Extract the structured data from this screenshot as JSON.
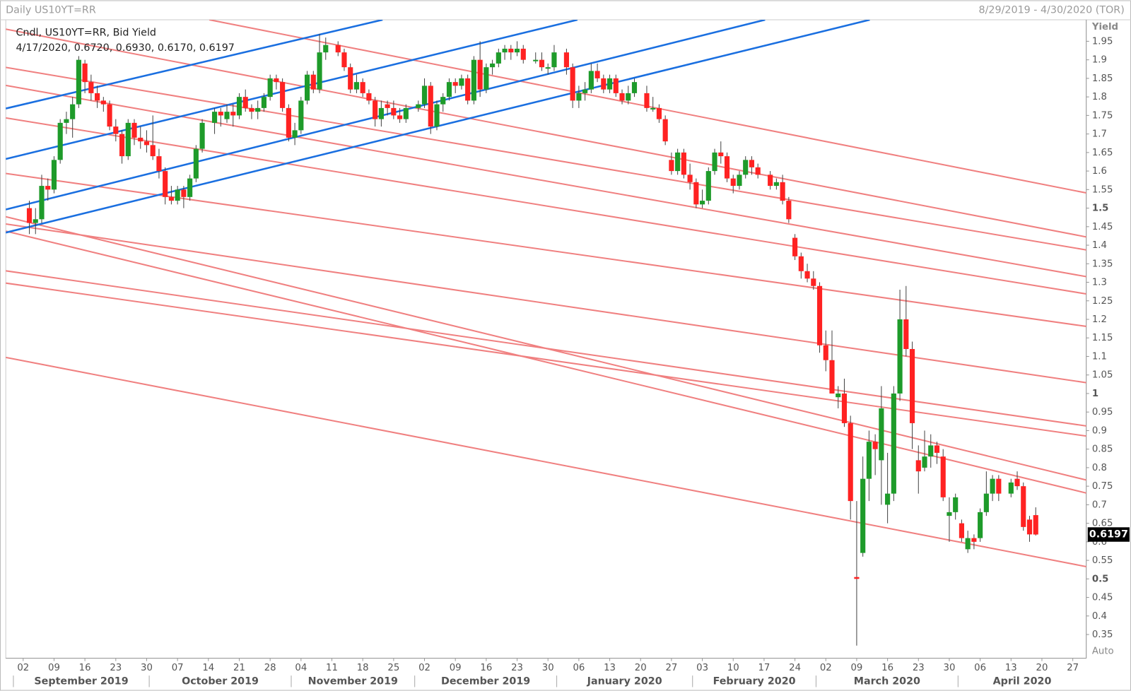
{
  "chart_data": {
    "type": "candlestick",
    "title": "Daily US10YT=RR",
    "date_range": "8/29/2019 - 4/30/2020 (TOR)",
    "legend_title": "Cndl, US10YT=RR, Bid Yield",
    "legend_detail": "4/17/2020, 0.6720, 0.6930, 0.6170, 0.6197",
    "y_label": "Yield",
    "scale_mode": "Auto",
    "up_color": "#1e9b2a",
    "down_color": "#ff2222",
    "x": [
      "2019-09-03",
      "2019-09-04",
      "2019-09-05",
      "2019-09-06",
      "2019-09-09",
      "2019-09-10",
      "2019-09-11",
      "2019-09-12",
      "2019-09-13",
      "2019-09-16",
      "2019-09-17",
      "2019-09-18",
      "2019-09-19",
      "2019-09-20",
      "2019-09-23",
      "2019-09-24",
      "2019-09-25",
      "2019-09-26",
      "2019-09-27",
      "2019-09-30",
      "2019-10-01",
      "2019-10-02",
      "2019-10-03",
      "2019-10-04",
      "2019-10-07",
      "2019-10-08",
      "2019-10-09",
      "2019-10-10",
      "2019-10-11",
      "2019-10-15",
      "2019-10-16",
      "2019-10-17",
      "2019-10-18",
      "2019-10-21",
      "2019-10-22",
      "2019-10-23",
      "2019-10-24",
      "2019-10-25",
      "2019-10-28",
      "2019-10-29",
      "2019-10-30",
      "2019-10-31",
      "2019-11-01",
      "2019-11-04",
      "2019-11-05",
      "2019-11-06",
      "2019-11-07",
      "2019-11-08",
      "2019-11-12",
      "2019-11-13",
      "2019-11-14",
      "2019-11-15",
      "2019-11-18",
      "2019-11-19",
      "2019-11-20",
      "2019-11-21",
      "2019-11-22",
      "2019-11-25",
      "2019-11-26",
      "2019-11-27",
      "2019-11-29",
      "2019-12-02",
      "2019-12-03",
      "2019-12-04",
      "2019-12-05",
      "2019-12-06",
      "2019-12-09",
      "2019-12-10",
      "2019-12-11",
      "2019-12-12",
      "2019-12-13",
      "2019-12-16",
      "2019-12-17",
      "2019-12-18",
      "2019-12-19",
      "2019-12-20",
      "2019-12-23",
      "2019-12-24",
      "2019-12-26",
      "2019-12-27",
      "2019-12-30",
      "2019-12-31",
      "2020-01-02",
      "2020-01-03",
      "2020-01-06",
      "2020-01-07",
      "2020-01-08",
      "2020-01-09",
      "2020-01-10",
      "2020-01-13",
      "2020-01-14",
      "2020-01-15",
      "2020-01-16",
      "2020-01-17",
      "2020-01-21",
      "2020-01-22",
      "2020-01-23",
      "2020-01-24",
      "2020-01-27",
      "2020-01-28",
      "2020-01-29",
      "2020-01-30",
      "2020-01-31",
      "2020-02-03",
      "2020-02-04",
      "2020-02-05",
      "2020-02-06",
      "2020-02-07",
      "2020-02-10",
      "2020-02-11",
      "2020-02-12",
      "2020-02-13",
      "2020-02-14",
      "2020-02-18",
      "2020-02-19",
      "2020-02-20",
      "2020-02-21",
      "2020-02-24",
      "2020-02-25",
      "2020-02-26",
      "2020-02-27",
      "2020-02-28",
      "2020-03-02",
      "2020-03-03",
      "2020-03-04",
      "2020-03-05",
      "2020-03-06",
      "2020-03-09",
      "2020-03-10",
      "2020-03-11",
      "2020-03-12",
      "2020-03-13",
      "2020-03-16",
      "2020-03-17",
      "2020-03-18",
      "2020-03-19",
      "2020-03-20",
      "2020-03-23",
      "2020-03-24",
      "2020-03-25",
      "2020-03-26",
      "2020-03-27",
      "2020-03-30",
      "2020-03-31",
      "2020-04-01",
      "2020-04-02",
      "2020-04-03",
      "2020-04-06",
      "2020-04-07",
      "2020-04-08",
      "2020-04-09",
      "2020-04-13",
      "2020-04-14",
      "2020-04-15",
      "2020-04-16",
      "2020-04-17"
    ],
    "open": [
      1.5,
      1.46,
      1.47,
      1.56,
      1.55,
      1.63,
      1.73,
      1.74,
      1.78,
      1.89,
      1.84,
      1.81,
      1.79,
      1.78,
      1.72,
      1.7,
      1.64,
      1.73,
      1.69,
      1.68,
      1.67,
      1.64,
      1.6,
      1.53,
      1.52,
      1.55,
      1.53,
      1.58,
      1.66,
      1.73,
      1.76,
      1.74,
      1.76,
      1.75,
      1.8,
      1.77,
      1.76,
      1.77,
      1.8,
      1.85,
      1.84,
      1.77,
      1.69,
      1.71,
      1.79,
      1.86,
      1.82,
      1.92,
      1.94,
      1.92,
      1.88,
      1.82,
      1.84,
      1.81,
      1.79,
      1.74,
      1.78,
      1.77,
      1.75,
      1.74,
      1.77,
      1.78,
      1.83,
      1.72,
      1.78,
      1.8,
      1.84,
      1.83,
      1.85,
      1.79,
      1.9,
      1.82,
      1.88,
      1.89,
      1.92,
      1.93,
      1.92,
      1.93,
      1.9,
      1.9,
      1.88,
      1.88,
      1.92,
      1.88,
      1.79,
      1.81,
      1.82,
      1.87,
      1.85,
      1.82,
      1.85,
      1.81,
      1.79,
      1.81,
      1.81,
      1.77,
      1.77,
      1.74,
      1.63,
      1.6,
      1.65,
      1.59,
      1.57,
      1.51,
      1.52,
      1.6,
      1.65,
      1.64,
      1.58,
      1.56,
      1.59,
      1.63,
      1.61,
      1.59,
      1.56,
      1.57,
      1.52,
      1.42,
      1.37,
      1.33,
      1.31,
      1.29,
      1.13,
      1.09,
      0.99,
      1.0,
      0.92,
      0.505,
      0.57,
      0.77,
      0.87,
      0.82,
      0.7,
      0.73,
      1.0,
      1.2,
      1.12,
      0.82,
      0.8,
      0.83,
      0.86,
      0.83,
      0.67,
      0.68,
      0.65,
      0.58,
      0.61,
      0.61,
      0.68,
      0.73,
      0.77,
      0.73,
      0.77,
      0.75,
      0.66,
      0.672
    ],
    "high": [
      1.52,
      1.5,
      1.59,
      1.58,
      1.64,
      1.74,
      1.76,
      1.8,
      1.91,
      1.9,
      1.86,
      1.83,
      1.8,
      1.79,
      1.74,
      1.71,
      1.74,
      1.74,
      1.72,
      1.71,
      1.75,
      1.66,
      1.61,
      1.56,
      1.56,
      1.56,
      1.59,
      1.67,
      1.74,
      1.77,
      1.77,
      1.78,
      1.78,
      1.81,
      1.82,
      1.78,
      1.79,
      1.81,
      1.86,
      1.86,
      1.85,
      1.78,
      1.73,
      1.8,
      1.87,
      1.87,
      1.97,
      1.96,
      1.95,
      1.93,
      1.89,
      1.86,
      1.85,
      1.82,
      1.8,
      1.79,
      1.79,
      1.79,
      1.77,
      1.78,
      1.79,
      1.85,
      1.84,
      1.79,
      1.81,
      1.85,
      1.85,
      1.86,
      1.86,
      1.91,
      1.95,
      1.89,
      1.9,
      1.93,
      1.94,
      1.94,
      1.95,
      1.94,
      1.92,
      1.92,
      1.89,
      1.94,
      1.93,
      1.89,
      1.83,
      1.84,
      1.89,
      1.89,
      1.86,
      1.86,
      1.86,
      1.82,
      1.83,
      1.85,
      1.83,
      1.8,
      1.78,
      1.75,
      1.65,
      1.66,
      1.66,
      1.62,
      1.58,
      1.55,
      1.61,
      1.66,
      1.68,
      1.65,
      1.59,
      1.6,
      1.64,
      1.64,
      1.62,
      1.6,
      1.58,
      1.59,
      1.53,
      1.43,
      1.38,
      1.35,
      1.33,
      1.3,
      1.17,
      1.17,
      1.02,
      1.04,
      0.94,
      0.71,
      0.83,
      0.9,
      0.89,
      1.02,
      0.84,
      1.02,
      1.28,
      1.29,
      1.14,
      0.86,
      0.9,
      0.89,
      0.87,
      0.85,
      0.72,
      0.73,
      0.66,
      0.63,
      0.62,
      0.69,
      0.79,
      0.78,
      0.78,
      0.77,
      0.79,
      0.76,
      0.67,
      0.693
    ],
    "low": [
      1.43,
      1.43,
      1.46,
      1.52,
      1.54,
      1.62,
      1.7,
      1.69,
      1.77,
      1.81,
      1.79,
      1.77,
      1.76,
      1.71,
      1.68,
      1.62,
      1.63,
      1.67,
      1.66,
      1.65,
      1.63,
      1.58,
      1.51,
      1.51,
      1.51,
      1.5,
      1.52,
      1.57,
      1.65,
      1.7,
      1.72,
      1.73,
      1.72,
      1.74,
      1.76,
      1.74,
      1.74,
      1.76,
      1.79,
      1.82,
      1.76,
      1.68,
      1.67,
      1.7,
      1.78,
      1.81,
      1.81,
      1.9,
      1.91,
      1.87,
      1.81,
      1.81,
      1.8,
      1.78,
      1.72,
      1.72,
      1.75,
      1.74,
      1.73,
      1.73,
      1.76,
      1.77,
      1.7,
      1.71,
      1.76,
      1.79,
      1.81,
      1.82,
      1.78,
      1.78,
      1.8,
      1.81,
      1.86,
      1.88,
      1.9,
      1.9,
      1.91,
      1.89,
      1.89,
      1.87,
      1.86,
      1.87,
      1.86,
      1.77,
      1.77,
      1.79,
      1.81,
      1.84,
      1.81,
      1.81,
      1.8,
      1.78,
      1.78,
      1.8,
      1.76,
      1.76,
      1.73,
      1.67,
      1.59,
      1.59,
      1.58,
      1.55,
      1.5,
      1.5,
      1.51,
      1.59,
      1.62,
      1.57,
      1.54,
      1.55,
      1.58,
      1.59,
      1.58,
      1.55,
      1.55,
      1.51,
      1.46,
      1.36,
      1.31,
      1.3,
      1.28,
      1.11,
      1.06,
      1.0,
      0.96,
      0.91,
      0.66,
      0.32,
      0.56,
      0.71,
      0.78,
      0.7,
      0.65,
      0.71,
      0.98,
      1.1,
      0.85,
      0.73,
      0.79,
      0.8,
      0.81,
      0.71,
      0.6,
      0.66,
      0.6,
      0.57,
      0.58,
      0.6,
      0.67,
      0.71,
      0.71,
      0.72,
      0.74,
      0.63,
      0.6,
      0.617
    ],
    "close": [
      1.46,
      1.47,
      1.56,
      1.55,
      1.63,
      1.73,
      1.74,
      1.78,
      1.9,
      1.84,
      1.81,
      1.79,
      1.78,
      1.72,
      1.7,
      1.64,
      1.73,
      1.69,
      1.68,
      1.67,
      1.64,
      1.6,
      1.53,
      1.52,
      1.55,
      1.53,
      1.58,
      1.66,
      1.73,
      1.76,
      1.75,
      1.76,
      1.75,
      1.8,
      1.77,
      1.76,
      1.77,
      1.8,
      1.85,
      1.84,
      1.77,
      1.69,
      1.71,
      1.79,
      1.86,
      1.82,
      1.92,
      1.94,
      1.92,
      1.88,
      1.82,
      1.84,
      1.81,
      1.79,
      1.74,
      1.77,
      1.77,
      1.75,
      1.74,
      1.77,
      1.78,
      1.83,
      1.72,
      1.78,
      1.8,
      1.84,
      1.83,
      1.85,
      1.79,
      1.9,
      1.82,
      1.88,
      1.89,
      1.92,
      1.93,
      1.92,
      1.93,
      1.9,
      1.9,
      1.88,
      1.88,
      1.92,
      1.88,
      1.79,
      1.81,
      1.82,
      1.87,
      1.85,
      1.82,
      1.85,
      1.81,
      1.79,
      1.81,
      1.84,
      1.77,
      1.77,
      1.74,
      1.68,
      1.6,
      1.65,
      1.59,
      1.57,
      1.51,
      1.52,
      1.6,
      1.65,
      1.64,
      1.58,
      1.56,
      1.59,
      1.63,
      1.61,
      1.59,
      1.56,
      1.57,
      1.52,
      1.47,
      1.37,
      1.33,
      1.31,
      1.29,
      1.13,
      1.09,
      1.0,
      1.0,
      0.92,
      0.71,
      0.5,
      0.77,
      0.87,
      0.85,
      0.96,
      0.73,
      1.0,
      1.2,
      1.12,
      0.92,
      0.79,
      0.83,
      0.86,
      0.84,
      0.72,
      0.68,
      0.72,
      0.61,
      0.61,
      0.6,
      0.68,
      0.73,
      0.77,
      0.73,
      0.76,
      0.75,
      0.64,
      0.62,
      0.6197
    ],
    "xlim": [
      "2019-08-29",
      "2020-04-30"
    ],
    "xticks": [
      {
        "value": "2019-09-02",
        "label": "02"
      },
      {
        "value": "2019-09-09",
        "label": "09"
      },
      {
        "value": "2019-09-16",
        "label": "16"
      },
      {
        "value": "2019-09-23",
        "label": "23"
      },
      {
        "value": "2019-09-30",
        "label": "30"
      },
      {
        "value": "2019-10-07",
        "label": "07"
      },
      {
        "value": "2019-10-14",
        "label": "14"
      },
      {
        "value": "2019-10-21",
        "label": "21"
      },
      {
        "value": "2019-10-28",
        "label": "28"
      },
      {
        "value": "2019-11-04",
        "label": "04"
      },
      {
        "value": "2019-11-11",
        "label": "11"
      },
      {
        "value": "2019-11-18",
        "label": "18"
      },
      {
        "value": "2019-11-25",
        "label": "25"
      },
      {
        "value": "2019-12-02",
        "label": "02"
      },
      {
        "value": "2019-12-09",
        "label": "09"
      },
      {
        "value": "2019-12-16",
        "label": "16"
      },
      {
        "value": "2019-12-23",
        "label": "23"
      },
      {
        "value": "2019-12-30",
        "label": "30"
      },
      {
        "value": "2020-01-06",
        "label": "06"
      },
      {
        "value": "2020-01-13",
        "label": "13"
      },
      {
        "value": "2020-01-20",
        "label": "20"
      },
      {
        "value": "2020-01-27",
        "label": "27"
      },
      {
        "value": "2020-02-03",
        "label": "03"
      },
      {
        "value": "2020-02-10",
        "label": "10"
      },
      {
        "value": "2020-02-17",
        "label": "17"
      },
      {
        "value": "2020-02-24",
        "label": "24"
      },
      {
        "value": "2020-03-02",
        "label": "02"
      },
      {
        "value": "2020-03-09",
        "label": "09"
      },
      {
        "value": "2020-03-16",
        "label": "16"
      },
      {
        "value": "2020-03-23",
        "label": "23"
      },
      {
        "value": "2020-03-30",
        "label": "30"
      },
      {
        "value": "2020-04-06",
        "label": "06"
      },
      {
        "value": "2020-04-13",
        "label": "13"
      },
      {
        "value": "2020-04-20",
        "label": "20"
      },
      {
        "value": "2020-04-27",
        "label": "27"
      }
    ],
    "months": [
      {
        "value": "2019-09-01",
        "label": "September 2019"
      },
      {
        "value": "2019-10-01",
        "label": "October 2019"
      },
      {
        "value": "2019-11-01",
        "label": "November 2019"
      },
      {
        "value": "2019-12-01",
        "label": "December 2019"
      },
      {
        "value": "2020-01-01",
        "label": "January 2020"
      },
      {
        "value": "2020-02-01",
        "label": "February 2020"
      },
      {
        "value": "2020-03-01",
        "label": "March 2020"
      },
      {
        "value": "2020-04-01",
        "label": "April 2020"
      }
    ],
    "ylim": [
      0.286,
      2.008
    ],
    "yticks": [
      0.35,
      0.4,
      0.45,
      0.5,
      0.55,
      0.6,
      0.65,
      0.7,
      0.75,
      0.8,
      0.85,
      0.9,
      0.95,
      1,
      1.05,
      1.1,
      1.15,
      1.2,
      1.25,
      1.3,
      1.35,
      1.4,
      1.45,
      1.5,
      1.55,
      1.6,
      1.65,
      1.7,
      1.75,
      1.8,
      1.85,
      1.9,
      1.95
    ]
  }
}
